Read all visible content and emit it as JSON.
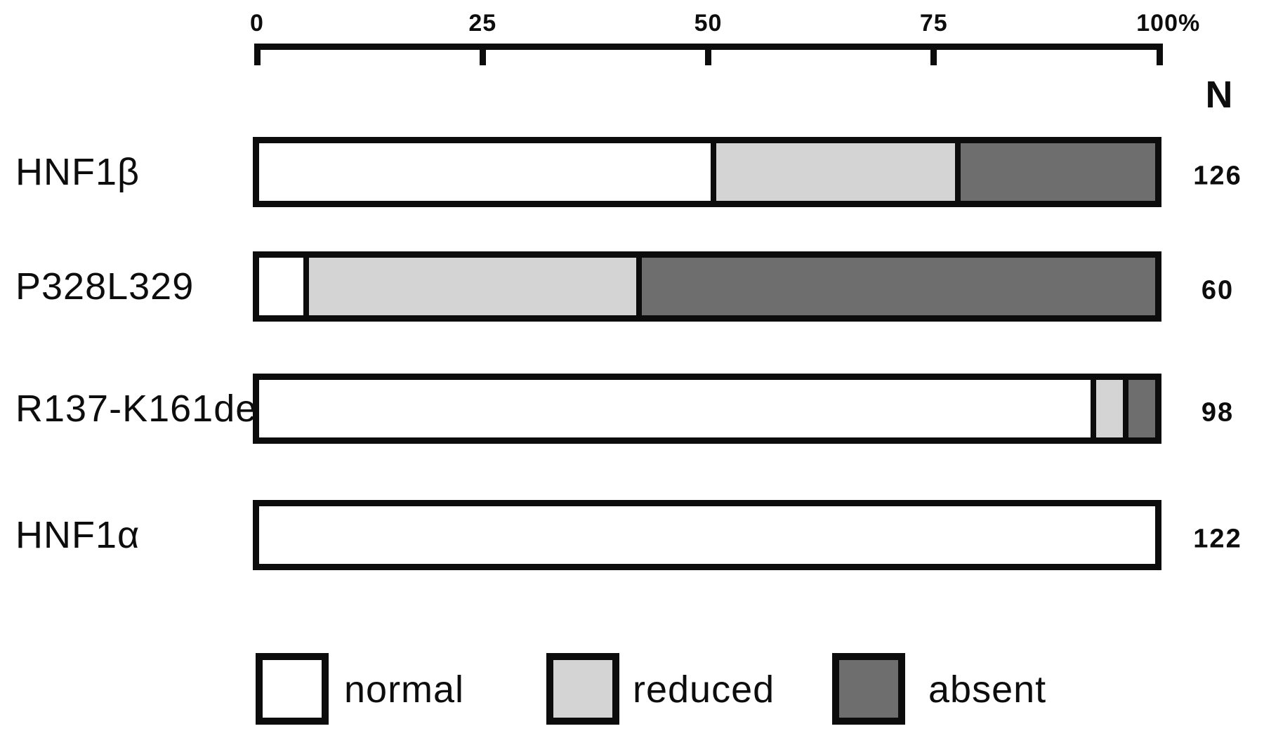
{
  "chart_data": {
    "type": "bar",
    "subtype": "horizontal-stacked-percentage",
    "title": "",
    "categories": [
      "HNF1β",
      "P328L329",
      "R137-K161del",
      "HNF1α"
    ],
    "series": [
      {
        "name": "normal",
        "color": "#ffffff",
        "values": [
          51,
          5,
          94,
          100
        ]
      },
      {
        "name": "reduced",
        "color": "#d4d4d4",
        "values": [
          27,
          37,
          3,
          0
        ]
      },
      {
        "name": "absent",
        "color": "#6e6e6e",
        "values": [
          22,
          58,
          3,
          0
        ]
      }
    ],
    "n_header": "N",
    "n_values": [
      126,
      60,
      98,
      122
    ],
    "x_axis": {
      "position": "top",
      "range": [
        0,
        100
      ],
      "ticks": [
        {
          "v": 0,
          "label": "0"
        },
        {
          "v": 25,
          "label": "25"
        },
        {
          "v": 50,
          "label": "50"
        },
        {
          "v": 75,
          "label": "75"
        },
        {
          "v": 100,
          "label": "100%"
        }
      ]
    },
    "legend": {
      "position": "bottom",
      "entries": [
        "normal",
        "reduced",
        "absent"
      ]
    },
    "colors": {
      "stroke": "#0c0c0c",
      "background": "#ffffff"
    }
  }
}
